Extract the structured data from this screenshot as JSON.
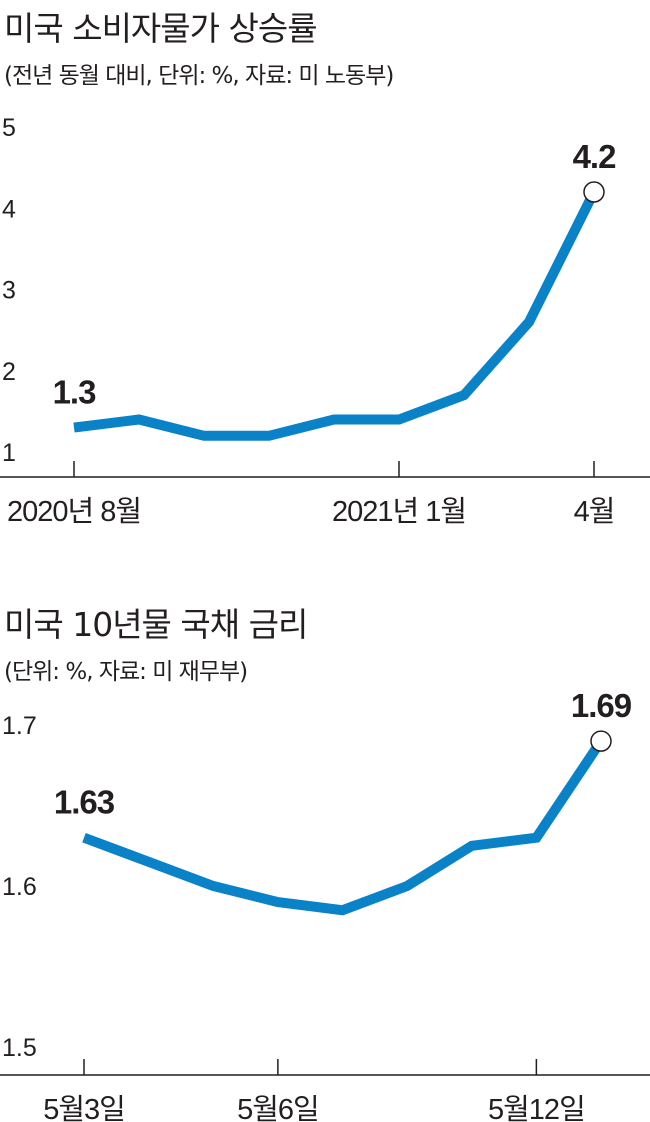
{
  "chart_data": [
    {
      "type": "line",
      "title": "미국 소비자물가 상승률",
      "subtitle": "(전년 동월 대비, 단위: %, 자료: 미 노동부)",
      "y_ticks": [
        "1",
        "2",
        "3",
        "4",
        "5"
      ],
      "ylim": [
        1,
        5
      ],
      "x_tick_labels": [
        {
          "index": 0,
          "label": "2020년 8월"
        },
        {
          "index": 5,
          "label": "2021년 1월"
        },
        {
          "index": 8,
          "label": "4월"
        }
      ],
      "series": [
        {
          "values": [
            1.3,
            1.4,
            1.2,
            1.2,
            1.4,
            1.4,
            1.7,
            2.6,
            4.2
          ]
        }
      ],
      "data_labels": [
        {
          "index": 0,
          "text": "1.3"
        },
        {
          "index": 8,
          "text": "4.2"
        }
      ],
      "line_color": "#0a82c8",
      "grid": false
    },
    {
      "type": "line",
      "title": "미국 10년물 국채 금리",
      "subtitle": "(단위: %, 자료: 미 재무부)",
      "y_ticks": [
        "1.5",
        "1.6",
        "1.7"
      ],
      "ylim": [
        1.5,
        1.7
      ],
      "x_tick_labels": [
        {
          "index": 0,
          "label": "5월3일"
        },
        {
          "index": 3,
          "label": "5월6일"
        },
        {
          "index": 7,
          "label": "5월12일"
        }
      ],
      "series": [
        {
          "values": [
            1.63,
            1.615,
            1.6,
            1.59,
            1.585,
            1.6,
            1.625,
            1.63,
            1.69
          ]
        }
      ],
      "data_labels": [
        {
          "index": 0,
          "text": "1.63"
        },
        {
          "index": 8,
          "text": "1.69"
        }
      ],
      "line_color": "#0a82c8",
      "grid": false
    }
  ]
}
